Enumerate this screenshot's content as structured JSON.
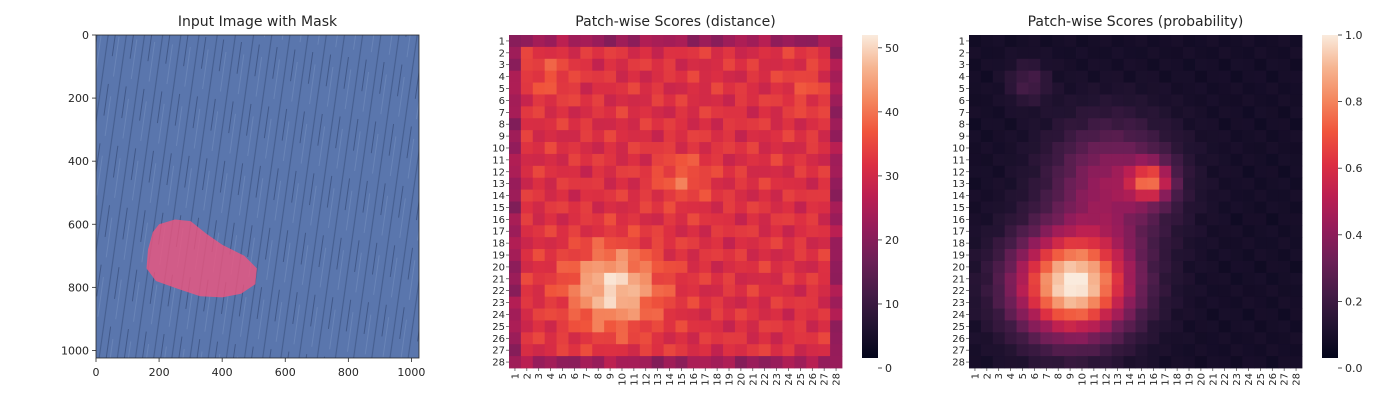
{
  "chart_data": [
    {
      "type": "image",
      "title": "Input Image with Mask",
      "x_ticks": [
        "0",
        "200",
        "400",
        "600",
        "800",
        "1000"
      ],
      "y_ticks": [
        "0",
        "200",
        "400",
        "600",
        "800",
        "1000"
      ],
      "xlim": [
        0,
        1024
      ],
      "ylim": [
        0,
        1024
      ],
      "mask_polygon": [
        [
          200,
          600
        ],
        [
          250,
          585
        ],
        [
          300,
          590
        ],
        [
          350,
          630
        ],
        [
          400,
          665
        ],
        [
          470,
          700
        ],
        [
          510,
          740
        ],
        [
          505,
          790
        ],
        [
          460,
          820
        ],
        [
          400,
          832
        ],
        [
          330,
          828
        ],
        [
          260,
          805
        ],
        [
          190,
          780
        ],
        [
          160,
          740
        ],
        [
          165,
          680
        ],
        [
          180,
          625
        ]
      ],
      "image_color": "#5470a8",
      "mask_color": "#f2547e"
    },
    {
      "type": "heatmap",
      "title": "Patch-wise Scores (distance)",
      "rows": 28,
      "cols": 28,
      "labels": [
        "1",
        "2",
        "3",
        "4",
        "5",
        "6",
        "7",
        "8",
        "9",
        "10",
        "11",
        "12",
        "13",
        "14",
        "15",
        "16",
        "17",
        "18",
        "19",
        "20",
        "21",
        "22",
        "23",
        "24",
        "25",
        "26",
        "27",
        "28"
      ],
      "vmin": 0,
      "vmax": 52,
      "colorbar_ticks": [
        "0",
        "10",
        "20",
        "30",
        "40",
        "50"
      ],
      "colormap": "rocket"
    },
    {
      "type": "heatmap",
      "title": "Patch-wise Scores (probability)",
      "rows": 28,
      "cols": 28,
      "labels": [
        "1",
        "2",
        "3",
        "4",
        "5",
        "6",
        "7",
        "8",
        "9",
        "10",
        "11",
        "12",
        "13",
        "14",
        "15",
        "16",
        "17",
        "18",
        "19",
        "20",
        "21",
        "22",
        "23",
        "24",
        "25",
        "26",
        "27",
        "28"
      ],
      "vmin": 0,
      "vmax": 1,
      "colorbar_ticks": [
        "0.0",
        "0.2",
        "0.4",
        "0.6",
        "0.8",
        "1.0"
      ],
      "colormap": "rocket"
    }
  ]
}
